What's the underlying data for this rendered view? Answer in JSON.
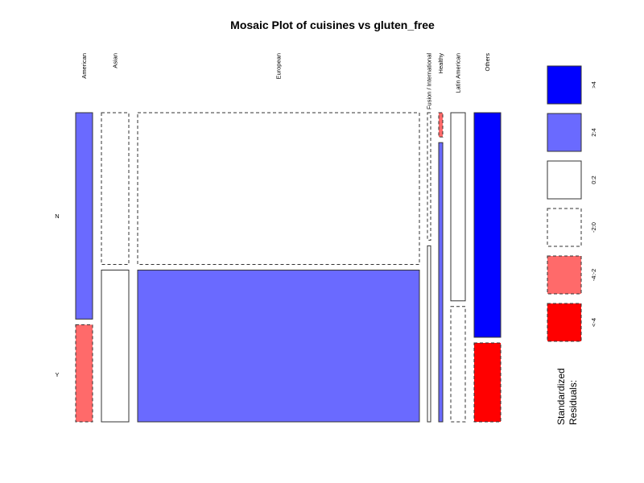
{
  "chart_data": {
    "type": "mosaic",
    "title": "Mosaic Plot of cuisines vs gluten_free",
    "row_variable_levels": [
      "N",
      "Y"
    ],
    "columns": [
      {
        "label": "American",
        "N": 0.68,
        "Y": 0.32,
        "resid_N": "2:4",
        "resid_Y": "-4:-2"
      },
      {
        "label": "Asian",
        "N": 0.5,
        "Y": 0.5,
        "resid_N": "-2:0",
        "resid_Y": "0:2"
      },
      {
        "label": "European",
        "N": 0.5,
        "Y": 0.5,
        "resid_N": "-2:0",
        "resid_Y": "2:4"
      },
      {
        "label": "Fusion / International",
        "N": 0.42,
        "Y": 0.58,
        "resid_N": "-2:0",
        "resid_Y": "0:2"
      },
      {
        "label": "Healthy",
        "N": 0.08,
        "Y": 0.92,
        "resid_N": "-4:-2",
        "resid_Y": "2:4"
      },
      {
        "label": "Latin American",
        "N": 0.62,
        "Y": 0.38,
        "resid_N": "0:2",
        "resid_Y": "-2:0"
      },
      {
        "label": "Others",
        "N": 0.74,
        "Y": 0.26,
        "resid_N": ">4",
        "resid_Y": "<-4"
      }
    ],
    "legend": {
      "title_lines": [
        "Standardized",
        "Residuals:"
      ],
      "placement": "right",
      "entries": [
        {
          "label": ">4",
          "fill": "#0000ff",
          "dashed": false
        },
        {
          "label": "2:4",
          "fill": "#6a6aff",
          "dashed": false
        },
        {
          "label": "0:2",
          "fill": "#ffffff",
          "dashed": false
        },
        {
          "label": "-2:0",
          "fill": "#ffffff",
          "dashed": true
        },
        {
          "label": "-4:-2",
          "fill": "#ff6a6a",
          "dashed": true
        },
        {
          "label": "<-4",
          "fill": "#ff0000",
          "dashed": true
        }
      ]
    }
  }
}
